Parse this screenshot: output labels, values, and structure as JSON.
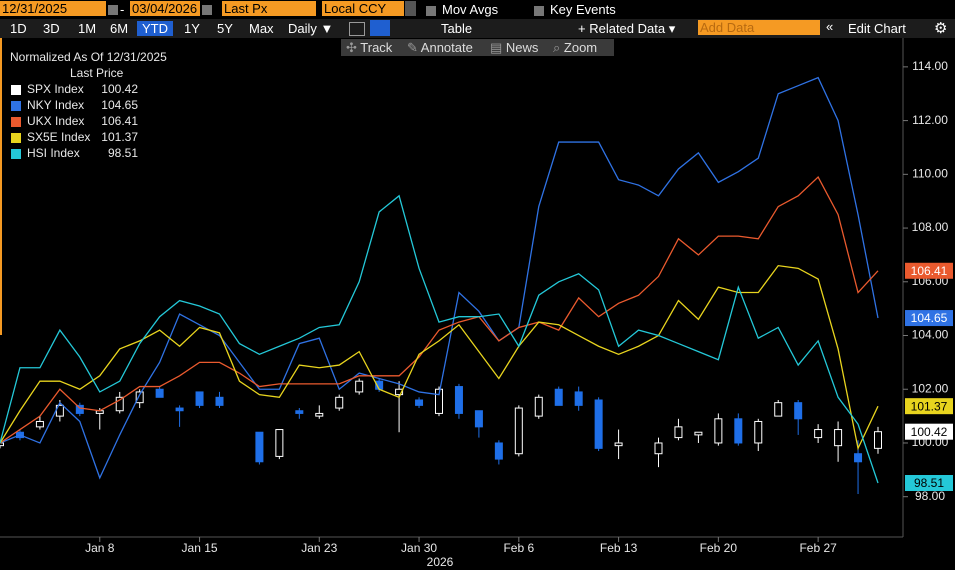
{
  "toolbar": {
    "start_date": "12/31/2025",
    "dash": "-",
    "end_date": "03/04/2026",
    "field": "Last Px",
    "currency": "Local CCY",
    "mov_avgs": "Mov Avgs",
    "key_events": "Key Events",
    "periods": [
      "1D",
      "3D",
      "1M",
      "6M",
      "YTD",
      "1Y",
      "5Y",
      "Max"
    ],
    "selected_period": 4,
    "frequency": "Daily ▼",
    "table": "Table",
    "related_data": "+ Related Data ▾",
    "add_data": "Add Data",
    "collapse": "«",
    "edit_chart": "Edit Chart",
    "tools": [
      "Track",
      "Annotate",
      "News",
      "Zoom"
    ]
  },
  "chart_data": {
    "type": "line",
    "title": "Normalized As Of 12/31/2025",
    "legend_title": "Last Price",
    "x_label": "2026",
    "x": [
      "Dec 31",
      "Jan 2",
      "Jan 5",
      "Jan 6",
      "Jan 7",
      "Jan 8",
      "Jan 9",
      "Jan 12",
      "Jan 13",
      "Jan 14",
      "Jan 15",
      "Jan 16",
      "Jan 19",
      "Jan 20",
      "Jan 21",
      "Jan 22",
      "Jan 23",
      "Jan 26",
      "Jan 27",
      "Jan 28",
      "Jan 29",
      "Jan 30",
      "Feb 2",
      "Feb 3",
      "Feb 4",
      "Feb 5",
      "Feb 6",
      "Feb 9",
      "Feb 10",
      "Feb 11",
      "Feb 12",
      "Feb 13",
      "Feb 16",
      "Feb 17",
      "Feb 18",
      "Feb 19",
      "Feb 20",
      "Feb 23",
      "Feb 24",
      "Feb 25",
      "Feb 26",
      "Feb 27",
      "Mar 2",
      "Mar 3",
      "Mar 4"
    ],
    "xticks": [
      "Jan 8",
      "Jan 15",
      "Jan 23",
      "Jan 30",
      "Feb 6",
      "Feb 13",
      "Feb 20",
      "Feb 27"
    ],
    "ylim": [
      96.5,
      115
    ],
    "yticks": [
      {
        "value": 98,
        "label": "98.00"
      },
      {
        "value": 100,
        "label": "100.00"
      },
      {
        "value": 102,
        "label": "102.00"
      },
      {
        "value": 104,
        "label": "104.00"
      },
      {
        "value": 106,
        "label": "106.00"
      },
      {
        "value": 108,
        "label": "108.00"
      },
      {
        "value": 110,
        "label": "110.00"
      },
      {
        "value": 112,
        "label": "112.00"
      },
      {
        "value": 114,
        "label": "114.00"
      }
    ],
    "series": [
      {
        "name": "SPX Index",
        "type": "candlestick",
        "color": "#ffffff",
        "down_color": "#1f6fe8",
        "open": [
          99.9,
          100.4,
          100.6,
          101,
          101.4,
          101.1,
          101.2,
          101.5,
          102,
          101.3,
          101.9,
          101.7,
          null,
          100.4,
          99.5,
          101.2,
          101,
          101.3,
          101.9,
          102.3,
          101.8,
          101.6,
          101.1,
          102.1,
          101.2,
          100,
          99.6,
          101,
          102,
          101.9,
          101.6,
          99.9,
          null,
          99.6,
          100.2,
          100.3,
          100,
          100.9,
          100,
          101,
          101.5,
          100.2,
          99.9,
          99.6,
          99.8
        ],
        "high": [
          100.1,
          100.5,
          101,
          101.6,
          101.5,
          101.3,
          101.9,
          102,
          102.1,
          101.4,
          101.9,
          101.9,
          null,
          100.4,
          100.5,
          101.3,
          101.4,
          101.8,
          102.4,
          102.4,
          102.3,
          101.7,
          102.1,
          102.2,
          101.2,
          100.1,
          101.4,
          101.8,
          102.1,
          102.1,
          101.7,
          100.5,
          null,
          100.2,
          100.9,
          100.4,
          101.1,
          101.1,
          100.9,
          101.6,
          101.6,
          100.7,
          100.8,
          100.1,
          100.6
        ],
        "low": [
          99.8,
          100.1,
          100.5,
          100.8,
          101,
          100.5,
          101.1,
          101.3,
          101.7,
          100.6,
          101.3,
          101.3,
          null,
          99.2,
          99.4,
          100.9,
          100.9,
          101.2,
          101.8,
          101.9,
          100.4,
          101.3,
          101,
          100.9,
          100.2,
          99.2,
          99.5,
          100.9,
          101.4,
          101.2,
          99.7,
          99.4,
          null,
          99.1,
          100.1,
          100,
          99.9,
          99.9,
          99.7,
          101,
          100.3,
          100,
          99.3,
          98.1,
          99.6
        ],
        "close": [
          100,
          100.2,
          100.8,
          101.4,
          101.1,
          101.2,
          101.7,
          101.9,
          101.7,
          101.2,
          101.4,
          101.4,
          null,
          99.3,
          100.5,
          101.1,
          101.1,
          101.7,
          102.3,
          102,
          102,
          101.4,
          102,
          101.1,
          100.6,
          99.4,
          101.3,
          101.7,
          101.4,
          101.4,
          99.8,
          100,
          null,
          100,
          100.6,
          100.4,
          100.9,
          100,
          100.8,
          101.5,
          100.9,
          100.5,
          100.5,
          99.3,
          100.42
        ]
      },
      {
        "name": "NKY Index",
        "color": "#2f72e4",
        "values": [
          100,
          100.3,
          100,
          101.5,
          100.8,
          98.7,
          100.3,
          101.8,
          103,
          104.8,
          104.4,
          104,
          103,
          102,
          102,
          103.7,
          103.9,
          102,
          102.6,
          102.4,
          102.2,
          101.9,
          101.8,
          105.6,
          104.9,
          103.8,
          104.3,
          108.8,
          111.2,
          111.2,
          111.2,
          109.8,
          109.6,
          109.2,
          110.2,
          110.8,
          109.7,
          110.1,
          110.6,
          113,
          113.3,
          113.6,
          112,
          108.5,
          104.65
        ]
      },
      {
        "name": "UKX Index",
        "color": "#ea5a2e",
        "values": [
          100,
          100.5,
          101,
          102,
          101.3,
          101.2,
          101.6,
          102.1,
          102.1,
          102.5,
          103,
          103,
          102.6,
          102.1,
          102.2,
          102.2,
          102.2,
          102.2,
          102.5,
          102.5,
          102.5,
          103.2,
          104.2,
          104.5,
          104.7,
          103.8,
          104.3,
          104.5,
          104.2,
          105.4,
          104.7,
          105.2,
          105.5,
          106.2,
          107.6,
          107,
          107.7,
          107.7,
          107.6,
          108.8,
          109.2,
          109.9,
          108.5,
          105.6,
          106.41
        ]
      },
      {
        "name": "SX5E Index",
        "color": "#e8d41e",
        "values": [
          100,
          101.2,
          102.3,
          102.3,
          102,
          102.5,
          103.5,
          103.8,
          104.2,
          103.6,
          104.3,
          104.1,
          102.3,
          101.8,
          101.7,
          102.9,
          102.8,
          102.9,
          103.4,
          102,
          101.7,
          103.3,
          103.8,
          104.4,
          103.4,
          102.4,
          103.6,
          104.5,
          104.4,
          104,
          103.6,
          103.3,
          103.6,
          104,
          105.3,
          104.6,
          105.8,
          105.6,
          105.6,
          106.6,
          106.5,
          106.1,
          103.5,
          99.8,
          101.37
        ]
      },
      {
        "name": "HSI Index",
        "color": "#24c8d8",
        "values": [
          100,
          102.8,
          102.8,
          104.2,
          103.2,
          101.9,
          102.3,
          103.7,
          104.7,
          105.3,
          105.1,
          104.8,
          103.7,
          103.3,
          103.6,
          103.9,
          104.3,
          104.4,
          106,
          108.6,
          109.2,
          106.5,
          104.5,
          104.7,
          104.7,
          104.8,
          103.6,
          105.5,
          106,
          106.3,
          105.7,
          103.6,
          104.2,
          104,
          103.7,
          103.4,
          103.1,
          105.8,
          103.9,
          104.3,
          102.9,
          103.8,
          101.7,
          100.7,
          98.51
        ]
      }
    ]
  }
}
